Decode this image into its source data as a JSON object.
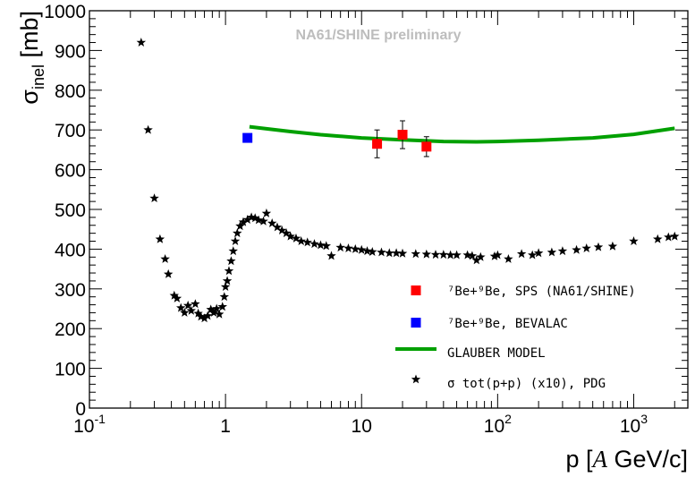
{
  "chart_data": {
    "type": "scatter",
    "title": "",
    "watermark": "NA61/SHINE preliminary",
    "xlabel": {
      "base": "p [",
      "italic": "A",
      "rest": " GeV/c]"
    },
    "ylabel": {
      "base": "σ",
      "sub": "inel",
      "rest": " [mb]"
    },
    "xscale": "log",
    "xlim": [
      0.1,
      2500
    ],
    "ylim": [
      0,
      1000
    ],
    "grid": false,
    "legend_position": "bottom-right",
    "y_ticks": [
      "0",
      "100",
      "200",
      "300",
      "400",
      "500",
      "600",
      "700",
      "800",
      "900",
      "1000"
    ],
    "x_ticks": [
      {
        "label": "10",
        "sup": "-1",
        "value": 0.1
      },
      {
        "label": "1",
        "sup": "",
        "value": 1
      },
      {
        "label": "10",
        "sup": "",
        "value": 10
      },
      {
        "label": "10",
        "sup": "2",
        "value": 100
      },
      {
        "label": "10",
        "sup": "3",
        "value": 1000
      }
    ],
    "series": [
      {
        "name": "⁷Be+⁹Be, SPS (NA61/SHINE)",
        "marker": "square",
        "color": "#ff0000",
        "points": [
          {
            "x": 13,
            "y": 665,
            "err": 35
          },
          {
            "x": 20,
            "y": 688,
            "err": 35
          },
          {
            "x": 30,
            "y": 658,
            "err": 25
          }
        ]
      },
      {
        "name": "⁷Be+⁹Be, BEVALAC",
        "marker": "square",
        "color": "#0000ff",
        "points": [
          {
            "x": 1.45,
            "y": 680
          }
        ]
      },
      {
        "name": "GLAUBER MODEL",
        "marker": "line",
        "color": "#00a000",
        "points": [
          {
            "x": 1.5,
            "y": 708
          },
          {
            "x": 2,
            "y": 703
          },
          {
            "x": 3,
            "y": 696
          },
          {
            "x": 5,
            "y": 688
          },
          {
            "x": 10,
            "y": 680
          },
          {
            "x": 20,
            "y": 675
          },
          {
            "x": 40,
            "y": 671
          },
          {
            "x": 70,
            "y": 670
          },
          {
            "x": 100,
            "y": 671
          },
          {
            "x": 200,
            "y": 674
          },
          {
            "x": 500,
            "y": 680
          },
          {
            "x": 1000,
            "y": 689
          },
          {
            "x": 2000,
            "y": 704
          }
        ]
      },
      {
        "name": "σ tot(p+p) (x10), PDG",
        "marker": "star",
        "color": "#000000",
        "points": [
          {
            "x": 0.24,
            "y": 920
          },
          {
            "x": 0.27,
            "y": 700
          },
          {
            "x": 0.3,
            "y": 528
          },
          {
            "x": 0.33,
            "y": 425
          },
          {
            "x": 0.36,
            "y": 375
          },
          {
            "x": 0.38,
            "y": 337
          },
          {
            "x": 0.42,
            "y": 283
          },
          {
            "x": 0.44,
            "y": 276
          },
          {
            "x": 0.47,
            "y": 252
          },
          {
            "x": 0.5,
            "y": 240
          },
          {
            "x": 0.53,
            "y": 258
          },
          {
            "x": 0.56,
            "y": 245
          },
          {
            "x": 0.6,
            "y": 262
          },
          {
            "x": 0.63,
            "y": 238
          },
          {
            "x": 0.66,
            "y": 230
          },
          {
            "x": 0.7,
            "y": 226
          },
          {
            "x": 0.74,
            "y": 232
          },
          {
            "x": 0.78,
            "y": 248
          },
          {
            "x": 0.82,
            "y": 240
          },
          {
            "x": 0.86,
            "y": 250
          },
          {
            "x": 0.9,
            "y": 236
          },
          {
            "x": 0.95,
            "y": 255
          },
          {
            "x": 0.98,
            "y": 280
          },
          {
            "x": 1.0,
            "y": 305
          },
          {
            "x": 1.03,
            "y": 320
          },
          {
            "x": 1.06,
            "y": 345
          },
          {
            "x": 1.1,
            "y": 370
          },
          {
            "x": 1.14,
            "y": 395
          },
          {
            "x": 1.18,
            "y": 420
          },
          {
            "x": 1.22,
            "y": 440
          },
          {
            "x": 1.28,
            "y": 458
          },
          {
            "x": 1.35,
            "y": 468
          },
          {
            "x": 1.45,
            "y": 474
          },
          {
            "x": 1.55,
            "y": 480
          },
          {
            "x": 1.65,
            "y": 478
          },
          {
            "x": 1.75,
            "y": 473
          },
          {
            "x": 1.9,
            "y": 470
          },
          {
            "x": 2.0,
            "y": 490
          },
          {
            "x": 2.2,
            "y": 465
          },
          {
            "x": 2.4,
            "y": 455
          },
          {
            "x": 2.6,
            "y": 447
          },
          {
            "x": 2.8,
            "y": 440
          },
          {
            "x": 3.0,
            "y": 432
          },
          {
            "x": 3.3,
            "y": 427
          },
          {
            "x": 3.6,
            "y": 420
          },
          {
            "x": 4.0,
            "y": 417
          },
          {
            "x": 4.5,
            "y": 413
          },
          {
            "x": 5.0,
            "y": 410
          },
          {
            "x": 5.5,
            "y": 408
          },
          {
            "x": 6.0,
            "y": 383
          },
          {
            "x": 7.0,
            "y": 404
          },
          {
            "x": 8.0,
            "y": 402
          },
          {
            "x": 9.0,
            "y": 400
          },
          {
            "x": 10,
            "y": 398
          },
          {
            "x": 11,
            "y": 395
          },
          {
            "x": 12,
            "y": 393
          },
          {
            "x": 14,
            "y": 392
          },
          {
            "x": 16,
            "y": 390
          },
          {
            "x": 18,
            "y": 390
          },
          {
            "x": 20,
            "y": 389
          },
          {
            "x": 25,
            "y": 388
          },
          {
            "x": 30,
            "y": 387
          },
          {
            "x": 35,
            "y": 386
          },
          {
            "x": 40,
            "y": 386
          },
          {
            "x": 45,
            "y": 385
          },
          {
            "x": 50,
            "y": 385
          },
          {
            "x": 60,
            "y": 385
          },
          {
            "x": 65,
            "y": 383
          },
          {
            "x": 70,
            "y": 372
          },
          {
            "x": 75,
            "y": 380
          },
          {
            "x": 95,
            "y": 382
          },
          {
            "x": 100,
            "y": 385
          },
          {
            "x": 120,
            "y": 375
          },
          {
            "x": 150,
            "y": 388
          },
          {
            "x": 180,
            "y": 385
          },
          {
            "x": 200,
            "y": 390
          },
          {
            "x": 250,
            "y": 392
          },
          {
            "x": 300,
            "y": 395
          },
          {
            "x": 380,
            "y": 398
          },
          {
            "x": 450,
            "y": 402
          },
          {
            "x": 550,
            "y": 405
          },
          {
            "x": 700,
            "y": 407
          },
          {
            "x": 1000,
            "y": 420
          },
          {
            "x": 1500,
            "y": 425
          },
          {
            "x": 1800,
            "y": 430
          },
          {
            "x": 2000,
            "y": 432
          }
        ]
      }
    ]
  }
}
